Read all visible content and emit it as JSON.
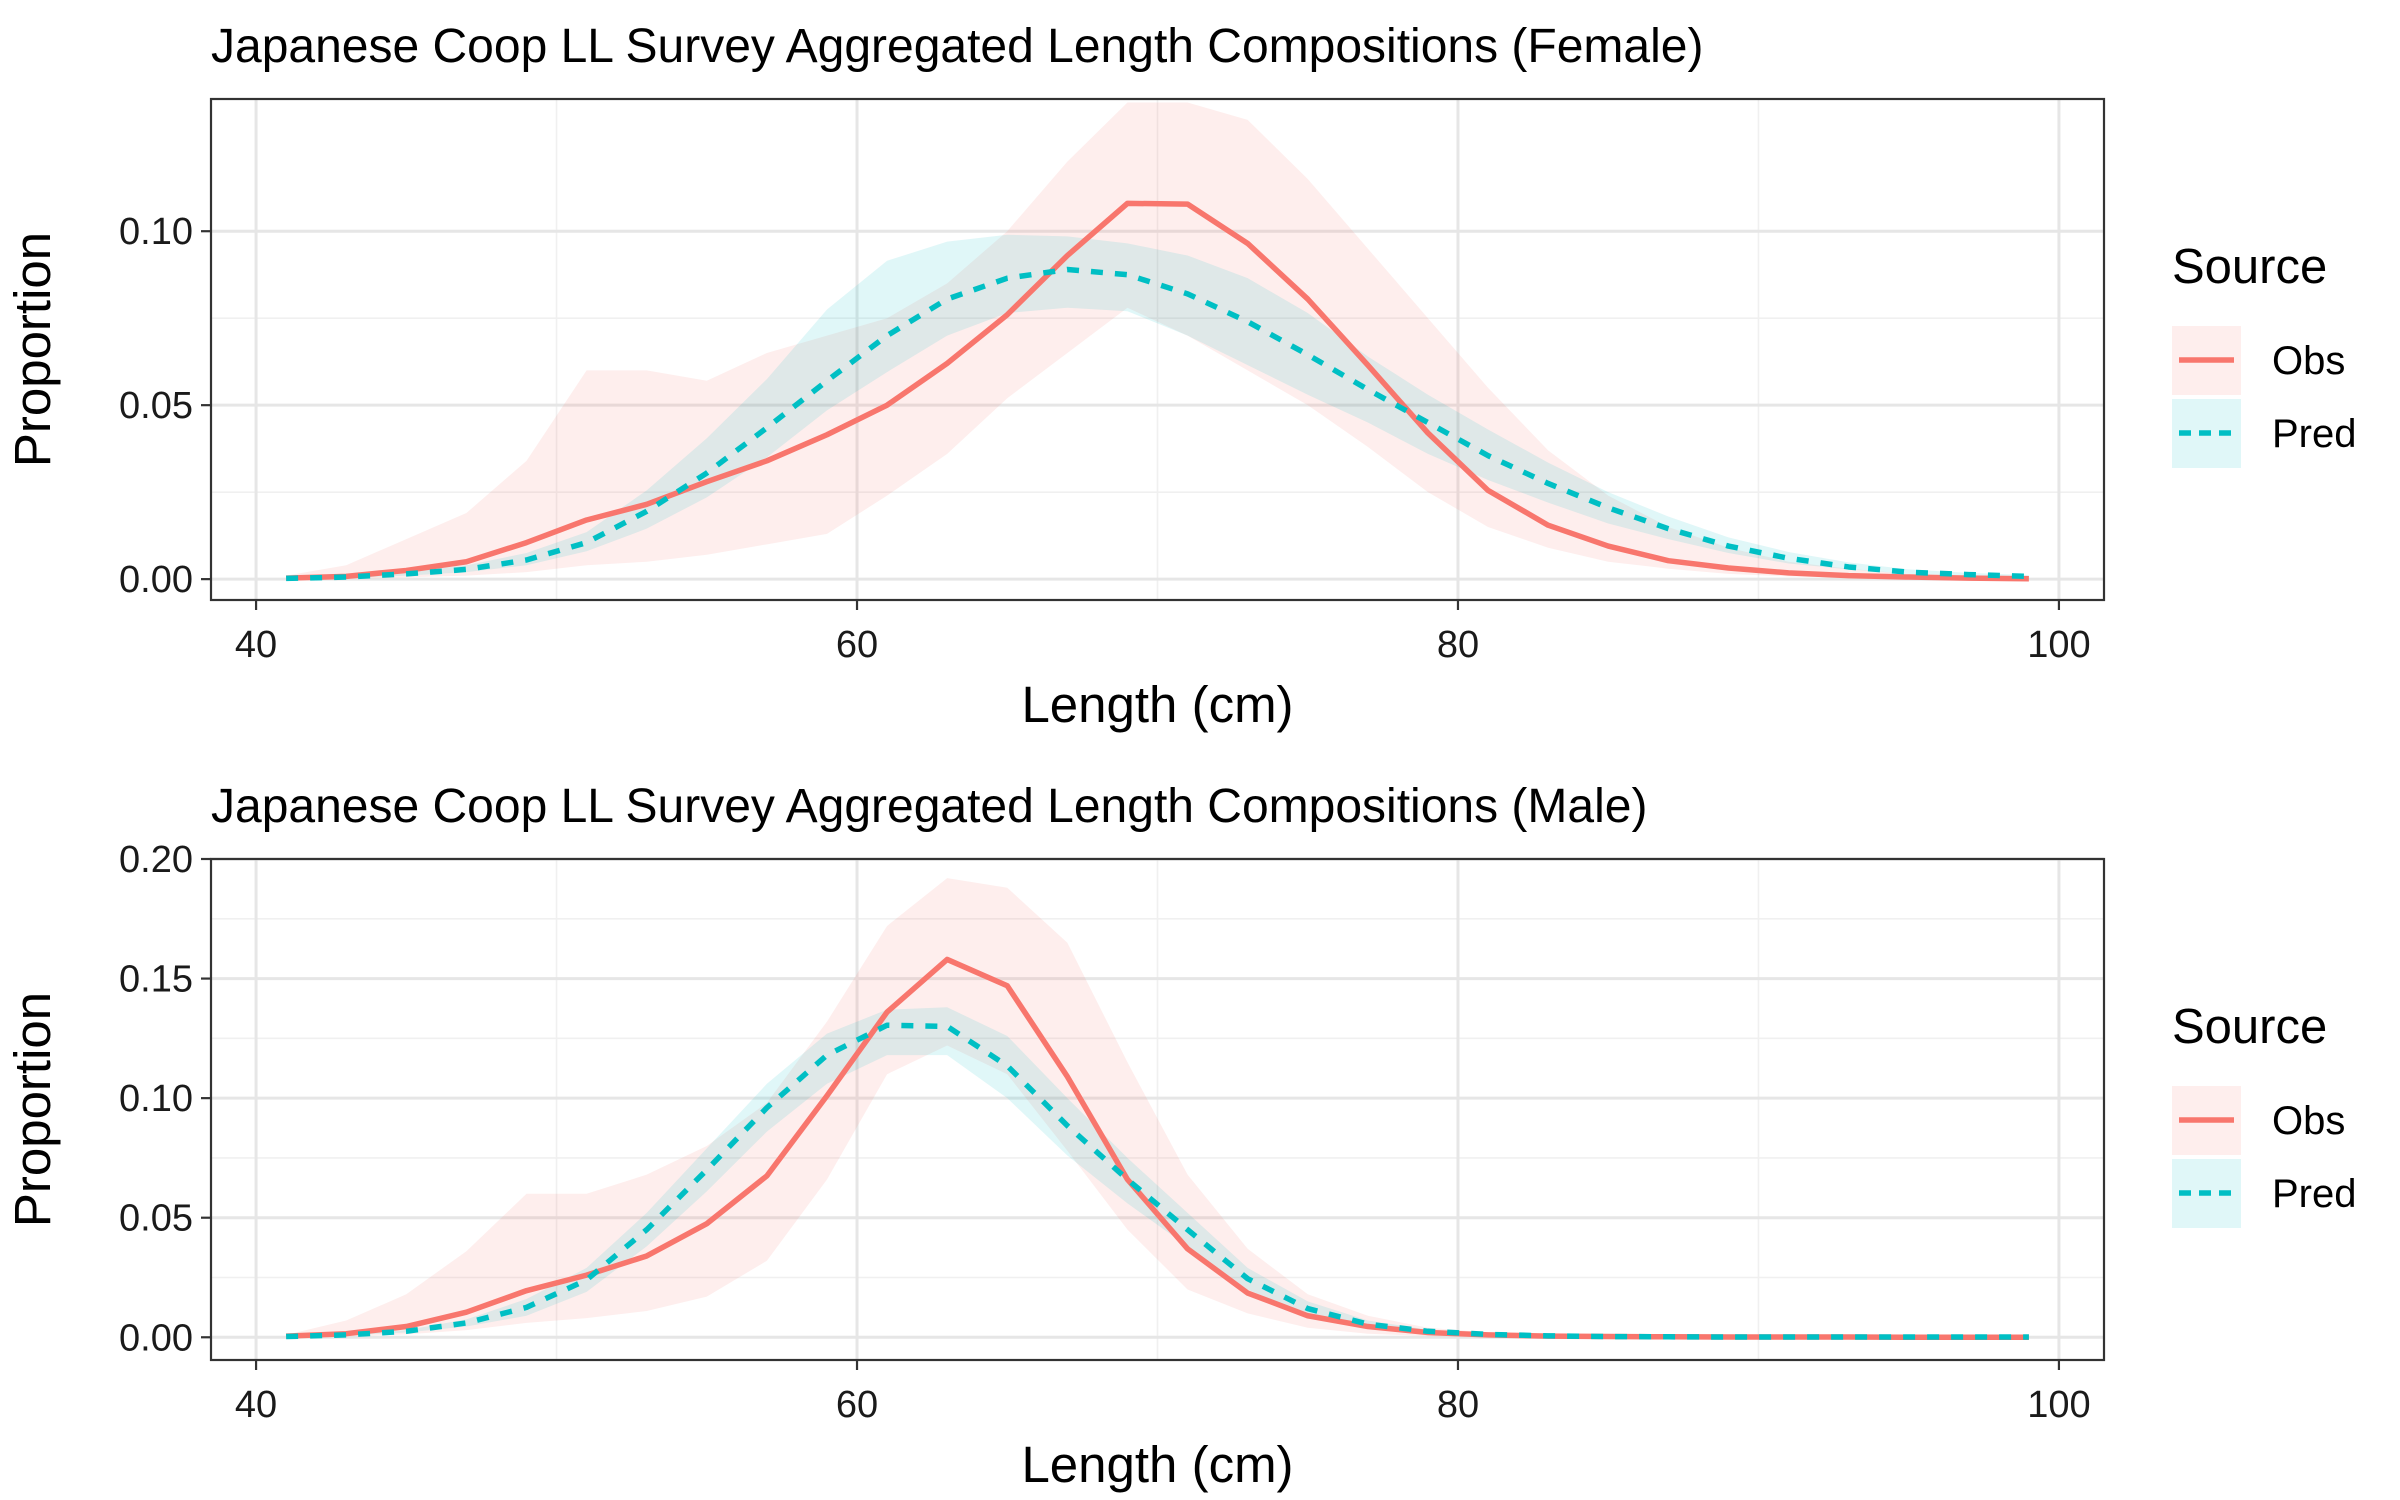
{
  "chart_data": [
    {
      "type": "line",
      "title": "Japanese Coop LL Survey Aggregated Length Compositions (Female)",
      "xlabel": "Length (cm)",
      "ylabel": "Proportion",
      "xlim": [
        38.5,
        101.5
      ],
      "ylim": [
        -0.006,
        0.138
      ],
      "xticks": [
        40,
        60,
        80,
        100
      ],
      "xtick_labels": [
        "40",
        "60",
        "80",
        "100"
      ],
      "yticks": [
        0,
        0.05,
        0.1
      ],
      "ytick_labels": [
        "0.00",
        "0.05",
        "0.10"
      ],
      "grid": true,
      "legend": {
        "title": "Source",
        "position": "right",
        "items": [
          "Obs",
          "Pred"
        ]
      },
      "x": [
        41,
        43,
        45,
        47,
        49,
        51,
        53,
        55,
        57,
        59,
        61,
        63,
        65,
        67,
        69,
        71,
        73,
        75,
        77,
        79,
        81,
        83,
        85,
        87,
        89,
        91,
        93,
        95,
        97,
        99
      ],
      "series": [
        {
          "name": "Obs",
          "color": "#F8766D",
          "linestyle": "solid",
          "values": [
            0.0003,
            0.0008,
            0.0025,
            0.005,
            0.0105,
            0.017,
            0.0215,
            0.028,
            0.034,
            0.0415,
            0.05,
            0.062,
            0.076,
            0.093,
            0.108,
            0.1078,
            0.0965,
            0.0805,
            0.0615,
            0.042,
            0.0255,
            0.0155,
            0.0095,
            0.0053,
            0.0032,
            0.0018,
            0.001,
            0.0006,
            0.0003,
            0.0001
          ],
          "lower": [
            0,
            0,
            0.0005,
            0.001,
            0.002,
            0.004,
            0.005,
            0.007,
            0.01,
            0.013,
            0.024,
            0.036,
            0.052,
            0.065,
            0.078,
            0.07,
            0.06,
            0.05,
            0.038,
            0.025,
            0.015,
            0.009,
            0.005,
            0.003,
            0.0015,
            0.0008,
            0.0004,
            0.0002,
            0.0001,
            0
          ],
          "upper": [
            0.001,
            0.004,
            0.0115,
            0.019,
            0.034,
            0.06,
            0.06,
            0.057,
            0.065,
            0.07,
            0.075,
            0.085,
            0.1,
            0.12,
            0.137,
            0.137,
            0.132,
            0.115,
            0.095,
            0.075,
            0.055,
            0.037,
            0.024,
            0.015,
            0.009,
            0.005,
            0.003,
            0.0015,
            0.0007,
            0.0003
          ]
        },
        {
          "name": "Pred",
          "color": "#00BFC4",
          "linestyle": "dashed",
          "values": [
            0.0002,
            0.0006,
            0.0015,
            0.0028,
            0.0055,
            0.0105,
            0.0195,
            0.0305,
            0.0435,
            0.057,
            0.07,
            0.0805,
            0.0865,
            0.089,
            0.0875,
            0.082,
            0.074,
            0.0645,
            0.0545,
            0.045,
            0.0355,
            0.0275,
            0.0205,
            0.0145,
            0.0095,
            0.006,
            0.0035,
            0.002,
            0.0013,
            0.0008
          ],
          "lower": [
            0,
            0.0003,
            0.001,
            0.002,
            0.004,
            0.008,
            0.0145,
            0.0235,
            0.035,
            0.0485,
            0.0595,
            0.07,
            0.0765,
            0.078,
            0.077,
            0.07,
            0.0615,
            0.053,
            0.045,
            0.036,
            0.0285,
            0.022,
            0.016,
            0.0115,
            0.0075,
            0.0045,
            0.0028,
            0.0015,
            0.001,
            0.0006
          ],
          "upper": [
            0.0004,
            0.001,
            0.002,
            0.004,
            0.0075,
            0.0135,
            0.0255,
            0.0405,
            0.0575,
            0.0775,
            0.0915,
            0.097,
            0.099,
            0.0985,
            0.0965,
            0.093,
            0.0865,
            0.0765,
            0.064,
            0.053,
            0.043,
            0.0335,
            0.025,
            0.018,
            0.012,
            0.0078,
            0.0048,
            0.0028,
            0.0018,
            0.0012
          ]
        }
      ]
    },
    {
      "type": "line",
      "title": "Japanese Coop LL Survey Aggregated Length Compositions (Male)",
      "xlabel": "Length (cm)",
      "ylabel": "Proportion",
      "xlim": [
        38.5,
        101.5
      ],
      "ylim": [
        -0.0095,
        0.2
      ],
      "xticks": [
        40,
        60,
        80,
        100
      ],
      "xtick_labels": [
        "40",
        "60",
        "80",
        "100"
      ],
      "yticks": [
        0,
        0.05,
        0.1,
        0.15,
        0.2
      ],
      "ytick_labels": [
        "0.00",
        "0.05",
        "0.10",
        "0.15",
        "0.20"
      ],
      "grid": true,
      "legend": {
        "title": "Source",
        "position": "right",
        "items": [
          "Obs",
          "Pred"
        ]
      },
      "x": [
        41,
        43,
        45,
        47,
        49,
        51,
        53,
        55,
        57,
        59,
        61,
        63,
        65,
        67,
        69,
        71,
        73,
        75,
        77,
        79,
        81,
        83,
        85,
        87,
        89,
        91,
        93,
        95,
        97,
        99
      ],
      "series": [
        {
          "name": "Obs",
          "color": "#F8766D",
          "linestyle": "solid",
          "values": [
            0.0005,
            0.0015,
            0.0045,
            0.0105,
            0.0195,
            0.026,
            0.034,
            0.0475,
            0.0675,
            0.101,
            0.136,
            0.158,
            0.147,
            0.109,
            0.066,
            0.037,
            0.0185,
            0.009,
            0.0045,
            0.002,
            0.001,
            0.0005,
            0.0003,
            0.0002,
            0.0001,
            0.0001,
            0.0001,
            0,
            0,
            0
          ],
          "lower": [
            0,
            0.0003,
            0.0012,
            0.003,
            0.006,
            0.008,
            0.011,
            0.017,
            0.032,
            0.066,
            0.11,
            0.122,
            0.11,
            0.078,
            0.045,
            0.02,
            0.01,
            0.004,
            0.0015,
            0.0005,
            0.0002,
            0.0001,
            0,
            0,
            0,
            0,
            0,
            0,
            0,
            0
          ],
          "upper": [
            0.001,
            0.007,
            0.018,
            0.036,
            0.06,
            0.06,
            0.068,
            0.08,
            0.098,
            0.132,
            0.172,
            0.192,
            0.188,
            0.165,
            0.115,
            0.068,
            0.037,
            0.018,
            0.009,
            0.004,
            0.002,
            0.001,
            0.0006,
            0.0003,
            0.0002,
            0.0001,
            0.0001,
            0.0001,
            0,
            0
          ]
        },
        {
          "name": "Pred",
          "color": "#00BFC4",
          "linestyle": "dashed",
          "values": [
            0.0003,
            0.001,
            0.0025,
            0.006,
            0.0125,
            0.024,
            0.045,
            0.07,
            0.096,
            0.118,
            0.1305,
            0.13,
            0.1135,
            0.0885,
            0.066,
            0.045,
            0.0245,
            0.012,
            0.0055,
            0.0025,
            0.0012,
            0.0006,
            0.0003,
            0.0002,
            0.0001,
            0.0001,
            0.0001,
            0.0001,
            0.0001,
            0.0001
          ],
          "lower": [
            0.0002,
            0.0008,
            0.002,
            0.0045,
            0.009,
            0.019,
            0.038,
            0.061,
            0.086,
            0.106,
            0.118,
            0.118,
            0.1,
            0.076,
            0.056,
            0.038,
            0.02,
            0.009,
            0.004,
            0.0018,
            0.0008,
            0.0004,
            0.0002,
            0.0001,
            0.0001,
            0,
            0,
            0,
            0,
            0
          ],
          "upper": [
            0.0005,
            0.0013,
            0.003,
            0.0075,
            0.016,
            0.029,
            0.052,
            0.079,
            0.106,
            0.127,
            0.137,
            0.138,
            0.126,
            0.1,
            0.075,
            0.052,
            0.029,
            0.015,
            0.007,
            0.0032,
            0.0016,
            0.0008,
            0.0004,
            0.0003,
            0.0002,
            0.0002,
            0.0001,
            0.0001,
            0.0001,
            0.0001
          ]
        }
      ]
    }
  ]
}
